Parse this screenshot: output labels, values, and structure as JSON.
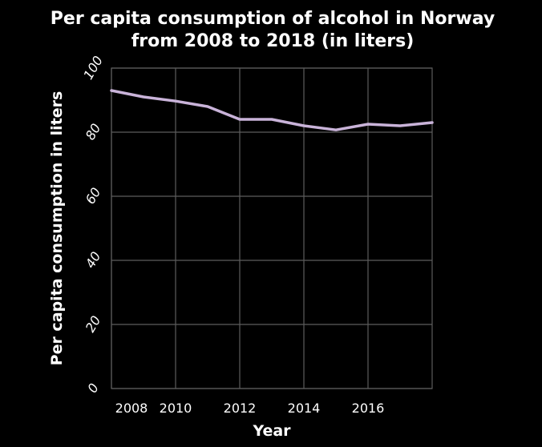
{
  "chart_data": {
    "type": "line",
    "title_line1": "Per capita consumption of alcohol in Norway",
    "title_line2": "from 2008 to 2018 (in liters)",
    "xlabel": "Year",
    "ylabel": "Per capita consumption in liters",
    "x_ticks": [
      2008,
      2010,
      2012,
      2014,
      2016
    ],
    "y_ticks": [
      0,
      20,
      40,
      60,
      80,
      100
    ],
    "xlim": [
      2008,
      2018
    ],
    "ylim": [
      0,
      100
    ],
    "grid": true,
    "line_color": "#c9b3d9",
    "background_color": "#000000",
    "x": [
      2008,
      2009,
      2010,
      2011,
      2012,
      2013,
      2014,
      2015,
      2016,
      2017,
      2018
    ],
    "values": [
      93,
      91,
      89.7,
      88,
      84,
      84,
      82,
      80.7,
      82.5,
      82,
      83
    ]
  }
}
